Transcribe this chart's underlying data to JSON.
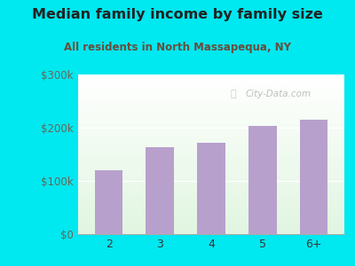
{
  "title": "Median family income by family size",
  "subtitle": "All residents in North Massapequa, NY",
  "categories": [
    "2",
    "3",
    "4",
    "5",
    "6+"
  ],
  "values": [
    120000,
    163000,
    172000,
    203000,
    215000
  ],
  "bar_color": "#b8a0cc",
  "ylim": [
    0,
    300000
  ],
  "yticks": [
    0,
    100000,
    200000,
    300000
  ],
  "ytick_labels": [
    "$0",
    "$100k",
    "$200k",
    "$300k"
  ],
  "bg_outer": "#00e8f0",
  "title_color": "#222222",
  "subtitle_color": "#6b4c3b",
  "watermark": "City-Data.com"
}
